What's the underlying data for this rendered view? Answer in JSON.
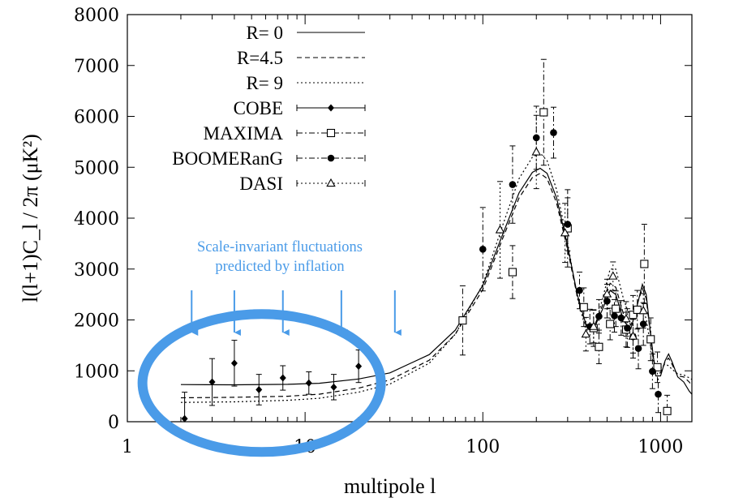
{
  "chart_data": {
    "type": "scatter",
    "xscale": "log",
    "xlim": [
      1,
      1500
    ],
    "ylim": [
      0,
      8000
    ],
    "xlabel": "multipole l",
    "ylabel": "l(l+1)C_l / 2π  (μK²)",
    "x_ticks": [
      {
        "v": 1,
        "label": "1"
      },
      {
        "v": 10,
        "label": "10"
      },
      {
        "v": 100,
        "label": "100"
      },
      {
        "v": 1000,
        "label": "1000"
      }
    ],
    "y_ticks": [
      0,
      1000,
      2000,
      3000,
      4000,
      5000,
      6000,
      7000,
      8000
    ],
    "curves": [
      {
        "name": "R=   0",
        "dash": "none",
        "points": [
          [
            2,
            730
          ],
          [
            4,
            725
          ],
          [
            8,
            735
          ],
          [
            12,
            755
          ],
          [
            20,
            840
          ],
          [
            30,
            960
          ],
          [
            50,
            1320
          ],
          [
            70,
            1800
          ],
          [
            100,
            2680
          ],
          [
            130,
            3700
          ],
          [
            160,
            4500
          ],
          [
            190,
            4900
          ],
          [
            210,
            4980
          ],
          [
            230,
            4880
          ],
          [
            260,
            4400
          ],
          [
            300,
            3450
          ],
          [
            340,
            2500
          ],
          [
            380,
            1920
          ],
          [
            420,
            1820
          ],
          [
            470,
            2200
          ],
          [
            520,
            2580
          ],
          [
            560,
            2500
          ],
          [
            620,
            1980
          ],
          [
            680,
            1820
          ],
          [
            740,
            2300
          ],
          [
            790,
            2700
          ],
          [
            830,
            2500
          ],
          [
            880,
            1700
          ],
          [
            940,
            900
          ],
          [
            1000,
            900
          ],
          [
            1060,
            1200
          ],
          [
            1110,
            1330
          ],
          [
            1160,
            1180
          ],
          [
            1250,
            880
          ],
          [
            1350,
            780
          ],
          [
            1450,
            600
          ],
          [
            1500,
            540
          ]
        ]
      },
      {
        "name": "R=4.5",
        "dash": "6,4",
        "points": [
          [
            2,
            470
          ],
          [
            4,
            480
          ],
          [
            8,
            500
          ],
          [
            12,
            540
          ],
          [
            20,
            660
          ],
          [
            30,
            820
          ],
          [
            50,
            1210
          ],
          [
            70,
            1720
          ],
          [
            100,
            2600
          ],
          [
            130,
            3620
          ],
          [
            160,
            4400
          ],
          [
            190,
            4800
          ],
          [
            210,
            4880
          ],
          [
            230,
            4780
          ],
          [
            260,
            4300
          ],
          [
            300,
            3380
          ],
          [
            340,
            2460
          ],
          [
            380,
            1900
          ],
          [
            420,
            1840
          ],
          [
            470,
            2280
          ],
          [
            520,
            2720
          ],
          [
            560,
            2640
          ],
          [
            620,
            2100
          ],
          [
            680,
            1900
          ],
          [
            740,
            2320
          ],
          [
            790,
            2620
          ],
          [
            830,
            2420
          ],
          [
            880,
            1680
          ],
          [
            940,
            960
          ],
          [
            1000,
            960
          ],
          [
            1060,
            1180
          ],
          [
            1110,
            1250
          ],
          [
            1160,
            1130
          ],
          [
            1250,
            900
          ],
          [
            1350,
            880
          ],
          [
            1450,
            780
          ],
          [
            1500,
            700
          ]
        ]
      },
      {
        "name": "R=   9",
        "dash": "2,3",
        "points": [
          [
            2,
            380
          ],
          [
            4,
            390
          ],
          [
            8,
            420
          ],
          [
            12,
            460
          ],
          [
            20,
            580
          ],
          [
            30,
            740
          ],
          [
            50,
            1150
          ],
          [
            70,
            1720
          ],
          [
            100,
            2700
          ],
          [
            130,
            3880
          ],
          [
            160,
            4780
          ],
          [
            190,
            5200
          ],
          [
            210,
            5280
          ],
          [
            230,
            5130
          ],
          [
            260,
            4560
          ],
          [
            300,
            3520
          ],
          [
            340,
            2440
          ],
          [
            380,
            1810
          ],
          [
            420,
            1770
          ],
          [
            470,
            2400
          ],
          [
            520,
            3000
          ],
          [
            560,
            3000
          ],
          [
            620,
            2400
          ],
          [
            680,
            2020
          ],
          [
            740,
            2180
          ],
          [
            790,
            2220
          ],
          [
            830,
            2020
          ],
          [
            880,
            1480
          ],
          [
            940,
            1000
          ],
          [
            1000,
            1060
          ],
          [
            1060,
            1130
          ],
          [
            1110,
            1100
          ],
          [
            1160,
            1030
          ],
          [
            1250,
            940
          ],
          [
            1350,
            920
          ],
          [
            1450,
            860
          ],
          [
            1500,
            830
          ]
        ]
      }
    ],
    "series": [
      {
        "name": "COBE",
        "marker": "diamond",
        "line": "solid",
        "points": [
          [
            2.1,
            60,
            520
          ],
          [
            3,
            780,
            460
          ],
          [
            4,
            1150,
            450
          ],
          [
            5.5,
            630,
            300
          ],
          [
            7.5,
            860,
            240
          ],
          [
            10.5,
            760,
            220
          ],
          [
            14.5,
            680,
            250
          ],
          [
            20,
            1090,
            320
          ]
        ]
      },
      {
        "name": "MAXIMA",
        "marker": "open-square",
        "line": "dashdot",
        "points": [
          [
            77,
            1990,
            680
          ],
          [
            147,
            2940,
            520
          ],
          [
            220,
            6080,
            1040
          ],
          [
            300,
            3800,
            760
          ],
          [
            370,
            2250,
            380
          ],
          [
            420,
            1840,
            360
          ],
          [
            450,
            1470,
            330
          ],
          [
            520,
            1920,
            310
          ],
          [
            560,
            2220,
            350
          ],
          [
            640,
            1810,
            340
          ],
          [
            700,
            2100,
            380
          ],
          [
            740,
            2200,
            380
          ],
          [
            810,
            3100,
            780
          ],
          [
            880,
            1620,
            420
          ],
          [
            960,
            1070,
            300
          ],
          [
            1090,
            210,
            310
          ]
        ]
      },
      {
        "name": "BOOMERanG",
        "marker": "filled-circle",
        "line": "dashdot",
        "points": [
          [
            100,
            3390,
            820
          ],
          [
            147,
            4660,
            760
          ],
          [
            200,
            5580,
            620
          ],
          [
            250,
            5680,
            500
          ],
          [
            300,
            3880,
            520
          ],
          [
            350,
            2580,
            360
          ],
          [
            400,
            1870,
            340
          ],
          [
            450,
            2070,
            330
          ],
          [
            500,
            2370,
            330
          ],
          [
            550,
            2080,
            320
          ],
          [
            600,
            2040,
            340
          ],
          [
            650,
            1840,
            380
          ],
          [
            700,
            1670,
            420
          ],
          [
            750,
            1440,
            400
          ],
          [
            800,
            1920,
            420
          ],
          [
            900,
            990,
            340
          ],
          [
            970,
            540,
            360
          ]
        ]
      },
      {
        "name": "DASI",
        "marker": "open-triangle",
        "line": "dotted",
        "points": [
          [
            125,
            3770,
            950
          ],
          [
            200,
            5300,
            720
          ],
          [
            290,
            3710,
            580
          ],
          [
            380,
            1720,
            330
          ],
          [
            420,
            1870,
            320
          ],
          [
            500,
            2510,
            290
          ],
          [
            540,
            2860,
            280
          ],
          [
            640,
            2020,
            340
          ],
          [
            700,
            1680,
            330
          ],
          [
            800,
            2180,
            340
          ]
        ]
      }
    ],
    "annotation": {
      "text_lines": [
        "Scale-invariant fluctuations",
        "predicted by inflation"
      ],
      "arrow_x": [
        2.3,
        4,
        7.5,
        16,
        32
      ],
      "color": "#4a9be8"
    },
    "legend": {
      "position": "top-left"
    }
  }
}
